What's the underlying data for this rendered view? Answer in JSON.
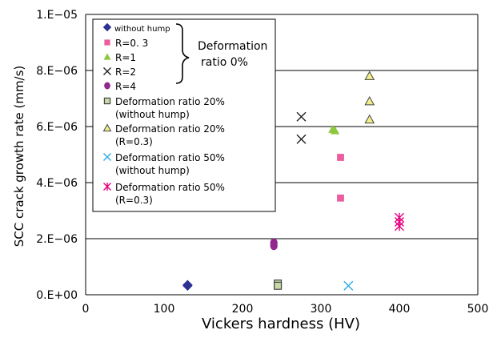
{
  "chart_data": {
    "type": "scatter",
    "xlabel": "Vickers hardness (HV)",
    "ylabel": "SCC crack growth rate (mm/s)",
    "xlim": [
      0,
      500
    ],
    "ylim": [
      0,
      1e-05
    ],
    "x_ticks": [
      "0",
      "100",
      "200",
      "300",
      "400",
      "500"
    ],
    "y_ticks": [
      "0.E+00",
      "2.E−06",
      "4.E−06",
      "6.E−06",
      "8.E−06",
      "1.E−05"
    ],
    "grid": "horizontal",
    "legend_position": "top-left",
    "legend_annotation": [
      "Deformation",
      "ratio 0%"
    ],
    "series": [
      {
        "name": "without hump",
        "marker": "diamond",
        "color": "#2e3192",
        "points": [
          [
            130,
            3.5e-07
          ],
          [
            130,
            3.2e-07
          ]
        ]
      },
      {
        "name": "R=0. 3",
        "marker": "square",
        "color": "#ec5d9f",
        "points": [
          [
            325,
            4.9e-06
          ],
          [
            325,
            3.45e-06
          ]
        ]
      },
      {
        "name": "R=1",
        "marker": "triangle",
        "color": "#8dc63f",
        "points": [
          [
            315,
            5.9e-06
          ],
          [
            318,
            5.85e-06
          ]
        ]
      },
      {
        "name": "R=2",
        "marker": "x",
        "color": "#222222",
        "points": [
          [
            275,
            6.35e-06
          ],
          [
            275,
            5.55e-06
          ]
        ]
      },
      {
        "name": "R=4",
        "marker": "circle",
        "color": "#92278f",
        "points": [
          [
            240,
            1.85e-06
          ],
          [
            240,
            1.75e-06
          ]
        ]
      },
      {
        "name": "Deformation ratio 20% (without hump)",
        "label_lines": [
          "Deformation ratio 20%",
          "(without hump)"
        ],
        "marker": "square-open",
        "color": "#c8d9a8",
        "points": [
          [
            245,
            4e-07
          ],
          [
            245,
            3.2e-07
          ]
        ]
      },
      {
        "name": "Deformation ratio 20% (R=0.3)",
        "label_lines": [
          "Deformation ratio 20%",
          "(R=0.3)"
        ],
        "marker": "triangle-open",
        "color": "#f2ef8a",
        "points": [
          [
            362,
            7.8e-06
          ],
          [
            362,
            6.9e-06
          ],
          [
            362,
            6.25e-06
          ]
        ]
      },
      {
        "name": "Deformation ratio 50% (without hump)",
        "label_lines": [
          "Deformation ratio 50%",
          "(without hump)"
        ],
        "marker": "x",
        "color": "#29abe2",
        "points": [
          [
            335,
            3.2e-07
          ]
        ]
      },
      {
        "name": "Deformation ratio 50% (R=0.3)",
        "label_lines": [
          "Deformation ratio 50%",
          "(R=0.3)"
        ],
        "marker": "asterisk",
        "color": "#e6007e",
        "points": [
          [
            400,
            2.75e-06
          ],
          [
            400,
            2.6e-06
          ],
          [
            400,
            2.45e-06
          ]
        ]
      }
    ]
  }
}
